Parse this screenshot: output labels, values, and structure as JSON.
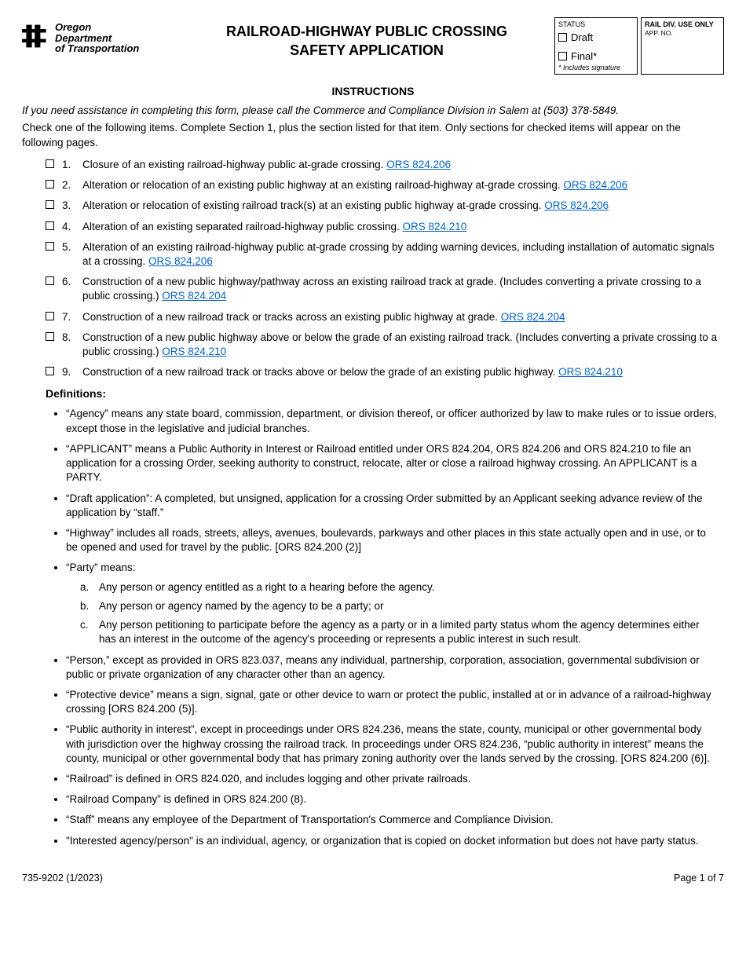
{
  "logo": {
    "line1": "Oregon",
    "line2": "Department",
    "line3": "of Transportation"
  },
  "form_title_line1": "RAILROAD-HIGHWAY PUBLIC CROSSING",
  "form_title_line2": "SAFETY APPLICATION",
  "status_box": {
    "title": "STATUS",
    "draft_label": "Draft",
    "final_label": "Final*",
    "note": "* Includes signature"
  },
  "rail_box": {
    "title": "RAIL DIV. USE ONLY",
    "appno_label": "APP. NO."
  },
  "instructions_heading": "INSTRUCTIONS",
  "intro_italic": "If you need assistance in completing this form, please call the Commerce and Compliance Division in Salem at (503) 378-5849.",
  "intro_text": "Check one of the following items. Complete Section 1, plus the section listed for that item. Only sections for checked items will appear on the following pages.",
  "options": [
    {
      "num": "1.",
      "text": "Closure of an existing railroad-highway public at-grade crossing. ",
      "link": "ORS 824.206"
    },
    {
      "num": "2.",
      "text": "Alteration or relocation of an existing public highway at an existing railroad-highway at-grade crossing. ",
      "link": "ORS 824.206"
    },
    {
      "num": "3.",
      "text": "Alteration or relocation of existing railroad track(s) at an existing public highway at-grade crossing. ",
      "link": "ORS 824.206"
    },
    {
      "num": "4.",
      "text": "Alteration of an existing separated railroad-highway public crossing. ",
      "link": "ORS 824.210"
    },
    {
      "num": "5.",
      "text": "Alteration of an existing railroad-highway public at-grade crossing by adding warning devices, including installation of automatic signals at a crossing. ",
      "link": "ORS 824.206"
    },
    {
      "num": "6.",
      "text": "Construction of a new public highway/pathway across an existing railroad track at grade. (Includes converting a private crossing to a public crossing.) ",
      "link": "ORS 824.204"
    },
    {
      "num": "7.",
      "text": "Construction of a new railroad track or tracks across an existing public highway at grade. ",
      "link": "ORS 824.204"
    },
    {
      "num": "8.",
      "text": "Construction of a new public highway above or below the grade of an existing railroad track. (Includes converting a private crossing to a public crossing.) ",
      "link": "ORS 824.210"
    },
    {
      "num": "9.",
      "text": "Construction of a new railroad track or tracks above or below the grade of an existing public highway. ",
      "link": "ORS 824.210"
    }
  ],
  "definitions_heading": "Definitions:",
  "definitions": [
    "“Agency” means any state board, commission, department, or division thereof, or officer authorized by law to make rules or to issue orders, except those in the legislative and judicial branches.",
    "“APPLICANT” means a Public Authority in Interest or Railroad entitled under ORS 824.204, ORS 824.206 and ORS 824.210 to file an application for a crossing Order, seeking authority to construct, relocate, alter or close a railroad highway crossing. An APPLICANT is a PARTY.",
    "“Draft application”: A completed, but unsigned, application for a crossing Order submitted by an Applicant seeking advance review of the application by “staff.”",
    "“Highway” includes all roads, streets, alleys, avenues, boulevards, parkways and other places in this state actually open and in use, or to be opened and used for travel by the public. [ORS 824.200 (2)]"
  ],
  "party_label": "“Party” means:",
  "party_sub": [
    {
      "letter": "a.",
      "text": "Any person or agency entitled as a right to a hearing before the agency."
    },
    {
      "letter": "b.",
      "text": "Any person or agency named by the agency to be a party; or"
    },
    {
      "letter": "c.",
      "text": "Any person petitioning to participate before the agency as a party or in a limited party status whom the agency determines either has an interest in the outcome of the agency's proceeding or represents a public interest in such result."
    }
  ],
  "definitions2": [
    "“Person,” except as provided in ORS 823.037, means any individual, partnership, corporation, association, governmental subdivision or public or private organization of any character other than an agency.",
    "“Protective device” means a sign, signal, gate or other device to warn or protect the public, installed at or in advance of a railroad-highway crossing [ORS 824.200 (5)].",
    "“Public authority in interest”, except in proceedings under ORS 824.236, means the state, county, municipal or other governmental body with jurisdiction over the highway crossing the railroad track. In proceedings under ORS 824.236, “public authority in interest” means the county, municipal or other governmental body that has primary zoning authority over the lands served by the crossing. [ORS 824.200 (6)].",
    "“Railroad” is defined in ORS 824.020, and includes logging and other private railroads.",
    "“Railroad Company” is defined in ORS 824.200 (8).",
    "“Staff” means any employee of the Department of Transportation's Commerce and Compliance Division.",
    "\"Interested agency/person\" is an individual, agency, or organization that is copied on docket information but does not have party status."
  ],
  "footer": {
    "form_number": "735-9202 (1/2023)",
    "page": "Page 1 of 7"
  }
}
